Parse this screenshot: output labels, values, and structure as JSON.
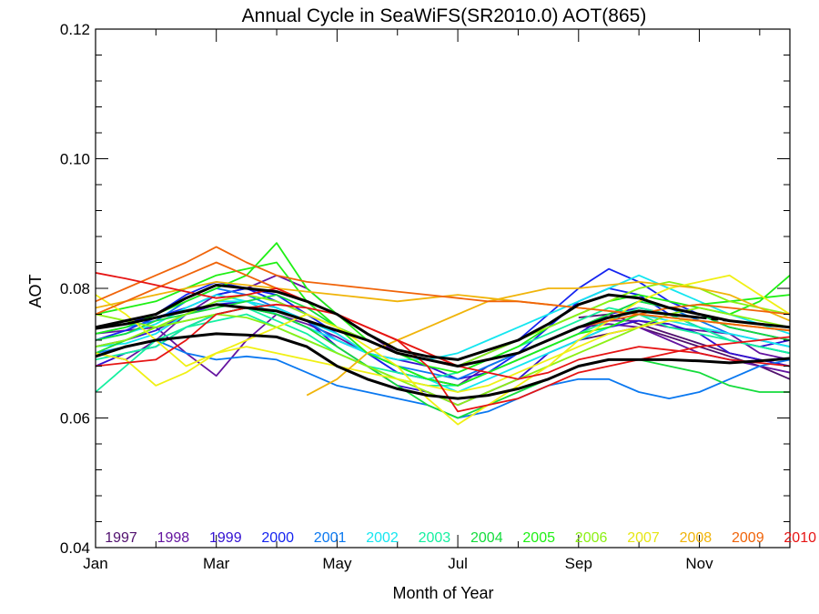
{
  "chart_data": {
    "type": "line",
    "title": "Annual Cycle in SeaWiFS(SR2010.0) AOT(865)",
    "xlabel": "Month of Year",
    "ylabel": "AOT",
    "xlim": [
      1,
      12.5
    ],
    "ylim": [
      0.04,
      0.12
    ],
    "x_ticks": [
      {
        "value": 1,
        "label": "Jan"
      },
      {
        "value": 3,
        "label": "Mar"
      },
      {
        "value": 5,
        "label": "May"
      },
      {
        "value": 7,
        "label": "Jul"
      },
      {
        "value": 9,
        "label": "Sep"
      },
      {
        "value": 11,
        "label": "Nov"
      }
    ],
    "y_ticks": [
      0.04,
      0.06,
      0.08,
      0.1,
      0.12
    ],
    "y_tick_labels": [
      "0.04",
      "0.06",
      "0.08",
      "0.10",
      "0.12"
    ],
    "grid": false,
    "legend_position": "bottom",
    "months": [
      1,
      1.5,
      2,
      2.5,
      3,
      3.5,
      4,
      4.5,
      5,
      5.5,
      6,
      6.5,
      7,
      7.5,
      8,
      8.5,
      9,
      9.5,
      10,
      10.5,
      11,
      11.5,
      12,
      12.5
    ],
    "series": [
      {
        "name": "1997",
        "color": "#50106e",
        "values": [
          null,
          null,
          null,
          null,
          null,
          null,
          null,
          null,
          null,
          null,
          null,
          null,
          null,
          null,
          null,
          null,
          0.0755,
          0.076,
          0.0745,
          0.073,
          0.0715,
          0.07,
          0.069,
          0.068
        ]
      },
      {
        "name": "1997",
        "color": "#50106e",
        "values": [
          null,
          null,
          null,
          null,
          null,
          null,
          null,
          null,
          null,
          null,
          null,
          null,
          null,
          null,
          null,
          null,
          0.072,
          0.073,
          0.074,
          0.0725,
          0.071,
          0.0695,
          0.068,
          0.066
        ]
      },
      {
        "name": "1998",
        "color": "#6414a0",
        "values": [
          0.073,
          0.0735,
          0.074,
          0.07,
          0.0665,
          0.072,
          0.076,
          0.0745,
          0.0725,
          0.07,
          0.067,
          0.066,
          0.065,
          0.068,
          0.07,
          0.072,
          0.074,
          0.0745,
          0.074,
          0.072,
          0.07,
          0.069,
          0.068,
          0.067
        ]
      },
      {
        "name": "1998",
        "color": "#6414a0",
        "values": [
          0.07,
          0.069,
          0.072,
          0.076,
          0.079,
          0.08,
          0.082,
          0.08,
          0.076,
          0.073,
          0.07,
          0.069,
          0.068,
          0.069,
          0.07,
          0.072,
          0.074,
          0.075,
          0.075,
          0.074,
          0.0735,
          0.073,
          0.07,
          0.069
        ]
      },
      {
        "name": "1999",
        "color": "#3210d2",
        "values": [
          0.071,
          0.072,
          0.0735,
          0.076,
          0.0775,
          0.078,
          0.077,
          0.075,
          0.071,
          0.068,
          0.065,
          0.064,
          0.062,
          0.064,
          0.066,
          0.07,
          0.072,
          0.074,
          0.075,
          0.0745,
          0.073,
          0.07,
          0.069,
          0.068
        ]
      },
      {
        "name": "1999",
        "color": "#3210d2",
        "values": [
          0.068,
          0.07,
          0.071,
          0.074,
          0.076,
          0.077,
          0.076,
          0.074,
          0.072,
          0.07,
          0.069,
          0.068,
          0.066,
          0.067,
          0.069,
          0.071,
          0.073,
          0.076,
          0.077,
          0.076,
          0.074,
          0.072,
          0.071,
          0.072
        ]
      },
      {
        "name": "2000",
        "color": "#1423f0",
        "values": [
          0.074,
          0.0745,
          0.076,
          0.079,
          0.081,
          0.08,
          0.079,
          0.076,
          0.073,
          0.07,
          0.067,
          0.066,
          0.065,
          0.067,
          0.07,
          0.074,
          0.078,
          0.08,
          0.079,
          0.076,
          0.074,
          0.072,
          0.071,
          0.07
        ]
      },
      {
        "name": "2000",
        "color": "#1423f0",
        "values": [
          0.072,
          0.0735,
          0.0755,
          0.077,
          0.079,
          0.08,
          0.078,
          0.076,
          0.074,
          0.072,
          0.07,
          0.069,
          0.068,
          0.07,
          0.072,
          0.076,
          0.08,
          0.083,
          0.081,
          0.078,
          0.076,
          0.074,
          0.073,
          0.072
        ]
      },
      {
        "name": "2001",
        "color": "#0a78f0",
        "values": [
          0.07,
          0.071,
          0.072,
          0.07,
          0.069,
          0.0695,
          0.069,
          0.067,
          0.065,
          0.064,
          0.063,
          0.062,
          0.06,
          0.061,
          0.063,
          0.065,
          0.066,
          0.066,
          0.064,
          0.063,
          0.064,
          0.066,
          0.068,
          0.069
        ]
      },
      {
        "name": "2001",
        "color": "#0a78f0",
        "values": [
          0.073,
          0.074,
          0.075,
          0.078,
          0.08,
          0.079,
          0.077,
          0.075,
          0.072,
          0.07,
          0.068,
          0.067,
          0.066,
          0.068,
          0.07,
          0.072,
          0.074,
          0.076,
          0.078,
          0.077,
          0.075,
          0.073,
          0.072,
          0.071
        ]
      },
      {
        "name": "2002",
        "color": "#14e6f0",
        "values": [
          0.072,
          0.073,
          0.0745,
          0.077,
          0.079,
          0.078,
          0.076,
          0.074,
          0.072,
          0.07,
          0.069,
          0.069,
          0.07,
          0.072,
          0.074,
          0.076,
          0.078,
          0.08,
          0.082,
          0.08,
          0.078,
          0.076,
          0.0745,
          0.073
        ]
      },
      {
        "name": "2002",
        "color": "#14e6f0",
        "values": [
          0.071,
          0.0715,
          0.073,
          0.076,
          0.078,
          0.078,
          0.077,
          0.075,
          0.073,
          0.07,
          0.068,
          0.066,
          0.064,
          0.066,
          0.068,
          0.07,
          0.072,
          0.074,
          0.076,
          0.075,
          0.074,
          0.073,
          0.072,
          0.071
        ]
      },
      {
        "name": "2003",
        "color": "#14f0a0",
        "values": [
          0.064,
          0.068,
          0.072,
          0.074,
          0.076,
          0.077,
          0.075,
          0.073,
          0.07,
          0.068,
          0.066,
          0.065,
          0.065,
          0.067,
          0.069,
          0.071,
          0.073,
          0.075,
          0.077,
          0.076,
          0.074,
          0.072,
          0.071,
          0.07
        ]
      },
      {
        "name": "2003",
        "color": "#14f0a0",
        "values": [
          0.069,
          0.07,
          0.071,
          0.074,
          0.075,
          0.076,
          0.074,
          0.072,
          0.07,
          0.068,
          0.067,
          0.066,
          0.067,
          0.069,
          0.071,
          0.073,
          0.075,
          0.077,
          0.076,
          0.074,
          0.073,
          0.072,
          0.071,
          0.07
        ]
      },
      {
        "name": "2004",
        "color": "#14dc3c",
        "values": [
          0.072,
          0.073,
          0.075,
          0.076,
          0.077,
          0.078,
          0.079,
          0.077,
          0.074,
          0.072,
          0.07,
          0.069,
          0.068,
          0.069,
          0.07,
          0.072,
          0.074,
          0.076,
          0.078,
          0.077,
          0.076,
          0.074,
          0.073,
          0.072
        ]
      },
      {
        "name": "2004",
        "color": "#14dc3c",
        "values": [
          0.07,
          0.072,
          0.074,
          0.075,
          0.076,
          0.077,
          0.076,
          0.074,
          0.071,
          0.068,
          0.065,
          0.062,
          0.06,
          0.062,
          0.064,
          0.066,
          0.068,
          0.069,
          0.069,
          0.068,
          0.067,
          0.065,
          0.064,
          0.064
        ]
      },
      {
        "name": "2005",
        "color": "#1ef014",
        "values": [
          0.073,
          0.074,
          0.076,
          0.078,
          0.08,
          0.082,
          0.087,
          0.08,
          0.076,
          0.072,
          0.07,
          0.068,
          0.067,
          0.069,
          0.071,
          0.074,
          0.076,
          0.078,
          0.079,
          0.078,
          0.077,
          0.076,
          0.078,
          0.082
        ]
      },
      {
        "name": "2005",
        "color": "#1ef014",
        "values": [
          0.076,
          0.077,
          0.078,
          0.08,
          0.082,
          0.083,
          0.084,
          0.078,
          0.074,
          0.07,
          0.068,
          0.066,
          0.065,
          0.067,
          0.069,
          0.071,
          0.073,
          0.074,
          0.076,
          0.077,
          0.0775,
          0.078,
          0.0785,
          0.079
        ]
      },
      {
        "name": "2006",
        "color": "#8cf014",
        "values": [
          0.071,
          0.072,
          0.074,
          0.075,
          0.076,
          0.0755,
          0.074,
          0.072,
          0.07,
          0.068,
          0.066,
          0.064,
          0.062,
          0.064,
          0.066,
          0.068,
          0.07,
          0.072,
          0.074,
          0.076,
          0.077,
          0.076,
          0.075,
          0.074
        ]
      },
      {
        "name": "2006",
        "color": "#8cf014",
        "values": [
          0.076,
          0.075,
          0.074,
          0.076,
          0.078,
          0.079,
          0.078,
          0.076,
          0.074,
          0.072,
          0.07,
          0.069,
          0.068,
          0.07,
          0.072,
          0.074,
          0.076,
          0.078,
          0.08,
          0.081,
          0.08,
          0.078,
          0.077,
          0.076
        ]
      },
      {
        "name": "2007",
        "color": "#f0f014",
        "values": [
          0.079,
          0.076,
          0.072,
          0.068,
          0.07,
          0.072,
          0.074,
          0.076,
          0.074,
          0.071,
          0.068,
          0.063,
          0.059,
          0.062,
          0.065,
          0.068,
          0.072,
          0.075,
          0.078,
          0.08,
          0.081,
          0.082,
          0.079,
          0.076
        ]
      },
      {
        "name": "2007",
        "color": "#f0f014",
        "values": [
          0.07,
          0.069,
          0.065,
          0.067,
          0.07,
          0.071,
          0.07,
          0.069,
          0.068,
          0.067,
          0.066,
          0.065,
          0.064,
          0.065,
          0.067,
          0.069,
          0.071,
          0.073,
          0.074,
          0.075,
          0.075,
          0.0745,
          0.074,
          0.0735
        ]
      },
      {
        "name": "2008",
        "color": "#f0b40a",
        "values": [
          null,
          null,
          null,
          null,
          null,
          null,
          null,
          0.0635,
          0.066,
          0.07,
          0.072,
          0.074,
          0.076,
          0.078,
          0.079,
          0.08,
          0.08,
          0.0805,
          0.081,
          0.0805,
          0.08,
          0.079,
          0.077,
          0.075
        ]
      },
      {
        "name": "2008",
        "color": "#f0b40a",
        "values": [
          0.077,
          0.078,
          0.079,
          0.08,
          0.081,
          0.0805,
          0.08,
          0.0795,
          0.079,
          0.0785,
          0.078,
          0.0785,
          0.079,
          0.0785,
          0.078,
          0.0775,
          0.077,
          0.0765,
          0.076,
          0.0755,
          0.075,
          0.0745,
          0.074,
          0.0735
        ]
      },
      {
        "name": "2009",
        "color": "#f0640a",
        "values": [
          0.078,
          0.08,
          0.082,
          0.084,
          0.0864,
          0.084,
          0.082,
          0.081,
          0.0805,
          0.08,
          0.0795,
          0.079,
          0.0785,
          0.078,
          0.078,
          0.0775,
          0.077,
          0.0765,
          0.076,
          0.0755,
          0.075,
          0.0745,
          0.074,
          0.0735
        ]
      },
      {
        "name": "2009",
        "color": "#f0640a",
        "values": [
          0.076,
          0.078,
          0.08,
          0.082,
          0.084,
          0.082,
          0.08,
          0.078,
          0.076,
          0.074,
          0.072,
          0.07,
          0.068,
          0.069,
          0.07,
          0.072,
          0.074,
          0.075,
          0.076,
          0.077,
          0.0775,
          0.077,
          0.0765,
          0.076
        ]
      },
      {
        "name": "2010",
        "color": "#e61414",
        "values": [
          0.0824,
          0.0815,
          0.0805,
          0.0795,
          0.0785,
          0.079,
          0.08,
          0.078,
          0.076,
          0.074,
          0.072,
          0.068,
          0.061,
          0.062,
          0.063,
          0.065,
          0.067,
          0.068,
          0.069,
          0.07,
          0.071,
          0.0715,
          0.072,
          0.0725
        ]
      },
      {
        "name": "2010",
        "color": "#e61414",
        "values": [
          0.068,
          0.0685,
          0.069,
          0.072,
          0.076,
          0.077,
          0.0775,
          0.077,
          0.076,
          0.074,
          0.072,
          0.07,
          0.068,
          0.067,
          0.066,
          0.067,
          0.069,
          0.07,
          0.071,
          0.0705,
          0.07,
          0.069,
          0.0685,
          0.068
        ]
      }
    ],
    "mean_lines": [
      {
        "color": "#000000",
        "dashed_tail": false,
        "values": [
          0.074,
          0.075,
          0.076,
          0.0785,
          0.0805,
          0.08,
          0.0795,
          0.078,
          0.076,
          0.073,
          0.0705,
          0.0695,
          0.069,
          0.0705,
          0.072,
          0.0745,
          0.0775,
          0.079,
          0.0785,
          0.077,
          0.076,
          0.075,
          0.0745,
          0.074
        ]
      },
      {
        "color": "#000000",
        "dashed_tail": true,
        "values": [
          0.0738,
          0.0745,
          0.0755,
          0.0765,
          0.0775,
          0.077,
          0.0765,
          0.075,
          0.0735,
          0.072,
          0.07,
          0.069,
          0.068,
          0.069,
          0.07,
          0.072,
          0.074,
          0.0755,
          0.0765,
          0.076,
          0.0755,
          0.075,
          0.0745,
          0.074
        ]
      },
      {
        "color": "#000000",
        "dashed_tail": false,
        "values": [
          0.0695,
          0.071,
          0.072,
          0.0725,
          0.073,
          0.0728,
          0.0725,
          0.071,
          0.068,
          0.066,
          0.0645,
          0.0635,
          0.063,
          0.0635,
          0.0645,
          0.066,
          0.068,
          0.069,
          0.069,
          0.069,
          0.0688,
          0.0685,
          0.0688,
          0.0692
        ]
      }
    ],
    "legend": [
      {
        "label": "1997",
        "color": "#50106e"
      },
      {
        "label": "1998",
        "color": "#6414a0"
      },
      {
        "label": "1999",
        "color": "#3210d2"
      },
      {
        "label": "2000",
        "color": "#1423f0"
      },
      {
        "label": "2001",
        "color": "#0a78f0"
      },
      {
        "label": "2002",
        "color": "#14e6f0"
      },
      {
        "label": "2003",
        "color": "#14f0a0"
      },
      {
        "label": "2004",
        "color": "#14dc3c"
      },
      {
        "label": "2005",
        "color": "#1ef014"
      },
      {
        "label": "2006",
        "color": "#8cf014"
      },
      {
        "label": "2007",
        "color": "#e6e614"
      },
      {
        "label": "2008",
        "color": "#f0b40a"
      },
      {
        "label": "2009",
        "color": "#f0640a"
      },
      {
        "label": "2010",
        "color": "#e61414"
      }
    ]
  }
}
